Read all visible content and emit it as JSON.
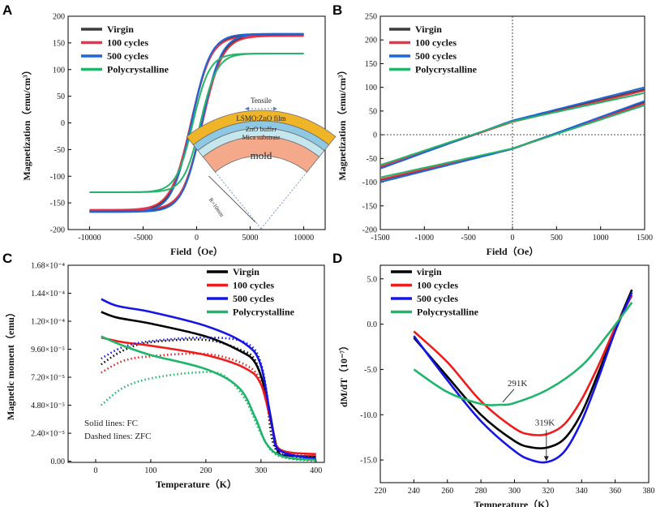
{
  "chart_data": [
    {
      "panel": "A",
      "type": "line",
      "title": "",
      "xlabel": "Field（Oe）",
      "ylabel": "Magnetization（emu/cm³）",
      "xlim": [
        -12000,
        12000
      ],
      "ylim": [
        -200,
        200
      ],
      "xticks": [
        -10000,
        -5000,
        0,
        5000,
        10000
      ],
      "yticks": [
        -200,
        -150,
        -100,
        -50,
        0,
        50,
        100,
        150,
        200
      ],
      "legend": [
        "Virgin",
        "100 cycles",
        "500 cycles",
        "Polycrystalline"
      ],
      "series": [
        {
          "name": "Virgin",
          "color": "#3d3d3d",
          "ms": 165,
          "hc": 500,
          "w": 1200
        },
        {
          "name": "100 cycles",
          "color": "#e8344a",
          "ms": 163,
          "hc": 550,
          "w": 1200
        },
        {
          "name": "500 cycles",
          "color": "#2166d9",
          "ms": 167,
          "hc": 500,
          "w": 1150
        },
        {
          "name": "Polycrystalline",
          "color": "#26b36a",
          "ms": 130,
          "hc": 350,
          "w": 1000
        }
      ],
      "inset": {
        "top_label": "Tensile",
        "layers": [
          "LSMO:ZnO film",
          "ZnO buffer",
          "Mica substrate",
          "mold"
        ],
        "radius_label": "R=10mm"
      }
    },
    {
      "panel": "B",
      "type": "line",
      "title": "",
      "xlabel": "Field（Oe）",
      "ylabel": "Magnetization（emu/cm³）",
      "xlim": [
        -1500,
        1500
      ],
      "ylim": [
        -200,
        250
      ],
      "xticks": [
        -1500,
        -1000,
        -500,
        0,
        500,
        1000,
        1500
      ],
      "yticks": [
        -200,
        -150,
        -100,
        -50,
        0,
        50,
        100,
        150,
        200,
        250
      ],
      "legend": [
        "Virgin",
        "100 cycles",
        "500 cycles",
        "Polycrystalline"
      ],
      "series": [
        {
          "name": "Virgin",
          "color": "#3d3d3d",
          "y_at_0_up": 28,
          "y_at_0_dn": -29,
          "y_at_1500": 96,
          "y_at_m1500": -96
        },
        {
          "name": "100 cycles",
          "color": "#e8344a",
          "y_at_0_up": 27,
          "y_at_0_dn": -30,
          "y_at_1500": 93,
          "y_at_m1500": -94
        },
        {
          "name": "500 cycles",
          "color": "#2166d9",
          "y_at_0_up": 30,
          "y_at_0_dn": -30,
          "y_at_1500": 100,
          "y_at_m1500": -100
        },
        {
          "name": "Polycrystalline",
          "color": "#26b36a",
          "y_at_0_up": 28,
          "y_at_0_dn": -29,
          "y_at_1500": 88,
          "y_at_m1500": -90
        }
      ]
    },
    {
      "panel": "C",
      "type": "line",
      "title": "",
      "xlabel": "Temperature（K）",
      "ylabel": "Magnetic moment（emu）",
      "xlim": [
        -50,
        415
      ],
      "ylim": [
        -1e-06,
        0.000168
      ],
      "xticks": [
        0,
        100,
        200,
        300,
        400
      ],
      "yticks": [
        "0.00",
        "2.40×10⁻⁵",
        "4.80×10⁻⁵",
        "7.20×10⁻⁵",
        "9.60×10⁻⁵",
        "1.20×10⁻⁴",
        "1.44×10⁻⁴",
        "1.68×10⁻⁴"
      ],
      "ytick_values": [
        0,
        2.4e-05,
        4.8e-05,
        7.2e-05,
        9.6e-05,
        0.00012,
        0.000144,
        0.000168
      ],
      "legend": [
        "Virgin",
        "100 cycles",
        "500 cycles",
        "Polycrystalline"
      ],
      "annotation": [
        "Solid lines: FC",
        "Dashed lines: ZFC"
      ],
      "series": [
        {
          "name": "Virgin",
          "color": "#000000",
          "fc": [
            [
              10,
              0.000128
            ],
            [
              40,
              0.000123
            ],
            [
              100,
              0.000118
            ],
            [
              200,
              0.000107
            ],
            [
              260,
              9.5e-05
            ],
            [
              290,
              8.4e-05
            ],
            [
              310,
              5.6e-05
            ],
            [
              330,
              1e-05
            ],
            [
              350,
              5e-06
            ],
            [
              400,
              4e-06
            ]
          ],
          "zfc": [
            [
              10,
              8.3e-05
            ],
            [
              50,
              9.5e-05
            ],
            [
              100,
              0.000102
            ],
            [
              200,
              0.000104
            ],
            [
              260,
              9.6e-05
            ],
            [
              290,
              8.6e-05
            ],
            [
              310,
              5.2e-05
            ],
            [
              330,
              8e-06
            ],
            [
              400,
              1e-06
            ]
          ]
        },
        {
          "name": "100 cycles",
          "color": "#ee1c1c",
          "fc": [
            [
              10,
              0.000106
            ],
            [
              50,
              0.000102
            ],
            [
              100,
              9.9e-05
            ],
            [
              200,
              9.1e-05
            ],
            [
              270,
              8e-05
            ],
            [
              300,
              6.6e-05
            ],
            [
              320,
              3e-05
            ],
            [
              335,
              1e-05
            ],
            [
              400,
              6e-06
            ]
          ],
          "zfc": [
            [
              10,
              7.6e-05
            ],
            [
              50,
              8.6e-05
            ],
            [
              100,
              9e-05
            ],
            [
              200,
              9.2e-05
            ],
            [
              270,
              8.3e-05
            ],
            [
              300,
              6.8e-05
            ],
            [
              320,
              3e-05
            ],
            [
              335,
              9e-06
            ],
            [
              400,
              4e-06
            ]
          ]
        },
        {
          "name": "500 cycles",
          "color": "#1515e6",
          "fc": [
            [
              10,
              0.000139
            ],
            [
              40,
              0.000133
            ],
            [
              100,
              0.000128
            ],
            [
              200,
              0.000116
            ],
            [
              270,
              0.000101
            ],
            [
              300,
              8.2e-05
            ],
            [
              320,
              3e-05
            ],
            [
              335,
              9e-06
            ],
            [
              400,
              2e-06
            ]
          ],
          "zfc": [
            [
              10,
              8.8e-05
            ],
            [
              50,
              9.8e-05
            ],
            [
              100,
              0.000103
            ],
            [
              200,
              0.000106
            ],
            [
              270,
              0.000102
            ],
            [
              300,
              8.4e-05
            ],
            [
              320,
              3e-05
            ],
            [
              335,
              7e-06
            ],
            [
              400,
              1e-06
            ]
          ]
        },
        {
          "name": "Polycrystalline",
          "color": "#1fb56a",
          "fc": [
            [
              10,
              0.000107
            ],
            [
              50,
              9.9e-05
            ],
            [
              100,
              9.1e-05
            ],
            [
              200,
              7.9e-05
            ],
            [
              260,
              6.3e-05
            ],
            [
              290,
              3.7e-05
            ],
            [
              310,
              1.5e-05
            ],
            [
              340,
              4e-06
            ],
            [
              400,
              1e-06
            ]
          ],
          "zfc": [
            [
              10,
              4.8e-05
            ],
            [
              50,
              6.3e-05
            ],
            [
              100,
              7.1e-05
            ],
            [
              180,
              7.6e-05
            ],
            [
              230,
              7.4e-05
            ],
            [
              270,
              5.4e-05
            ],
            [
              300,
              2.4e-05
            ],
            [
              330,
              5e-06
            ],
            [
              400,
              0.0
            ]
          ]
        }
      ]
    },
    {
      "panel": "D",
      "type": "line",
      "title": "",
      "xlabel": "Temperature（K）",
      "ylabel": "dM/dT（10⁻⁷）",
      "xlim": [
        220,
        380
      ],
      "ylim": [
        -17.5,
        6.5
      ],
      "xticks": [
        220,
        240,
        260,
        280,
        300,
        320,
        340,
        360,
        380
      ],
      "yticks": [
        -15.0,
        -10.0,
        -5.0,
        0.0,
        5.0
      ],
      "legend": [
        "virgin",
        "100 cycles",
        "500 cycles",
        "Polycrystalline"
      ],
      "annotations": [
        {
          "text": "291K",
          "x": 291,
          "y": -8.8
        },
        {
          "text": "319K",
          "x": 319,
          "y": -13.5
        }
      ],
      "series": [
        {
          "name": "virgin",
          "color": "#000000",
          "points": [
            [
              240,
              -1.5
            ],
            [
              260,
              -5.8
            ],
            [
              280,
              -10.0
            ],
            [
              300,
              -12.9
            ],
            [
              310,
              -13.6
            ],
            [
              320,
              -13.6
            ],
            [
              330,
              -12.6
            ],
            [
              340,
              -9.8
            ],
            [
              350,
              -5.4
            ],
            [
              360,
              -0.6
            ],
            [
              370,
              3.8
            ]
          ]
        },
        {
          "name": "100 cycles",
          "color": "#ee1c1c",
          "points": [
            [
              240,
              -0.8
            ],
            [
              260,
              -4.2
            ],
            [
              280,
              -8.5
            ],
            [
              300,
              -11.5
            ],
            [
              310,
              -12.2
            ],
            [
              320,
              -12.1
            ],
            [
              330,
              -11.0
            ],
            [
              340,
              -8.3
            ],
            [
              350,
              -4.6
            ],
            [
              360,
              -0.4
            ],
            [
              370,
              3.2
            ]
          ]
        },
        {
          "name": "500 cycles",
          "color": "#1515e6",
          "points": [
            [
              240,
              -1.3
            ],
            [
              260,
              -6.2
            ],
            [
              280,
              -10.7
            ],
            [
              300,
              -14.0
            ],
            [
              310,
              -15.0
            ],
            [
              320,
              -15.2
            ],
            [
              330,
              -14.0
            ],
            [
              340,
              -10.7
            ],
            [
              350,
              -6.0
            ],
            [
              360,
              -0.8
            ],
            [
              370,
              3.5
            ]
          ]
        },
        {
          "name": "Polycrystalline",
          "color": "#1fb56a",
          "points": [
            [
              240,
              -5.0
            ],
            [
              260,
              -7.5
            ],
            [
              280,
              -8.8
            ],
            [
              291,
              -8.9
            ],
            [
              300,
              -8.7
            ],
            [
              320,
              -7.2
            ],
            [
              340,
              -4.6
            ],
            [
              355,
              -1.3
            ],
            [
              370,
              2.4
            ]
          ]
        }
      ]
    }
  ],
  "labels": {
    "A": "A",
    "B": "B",
    "C": "C",
    "D": "D"
  }
}
